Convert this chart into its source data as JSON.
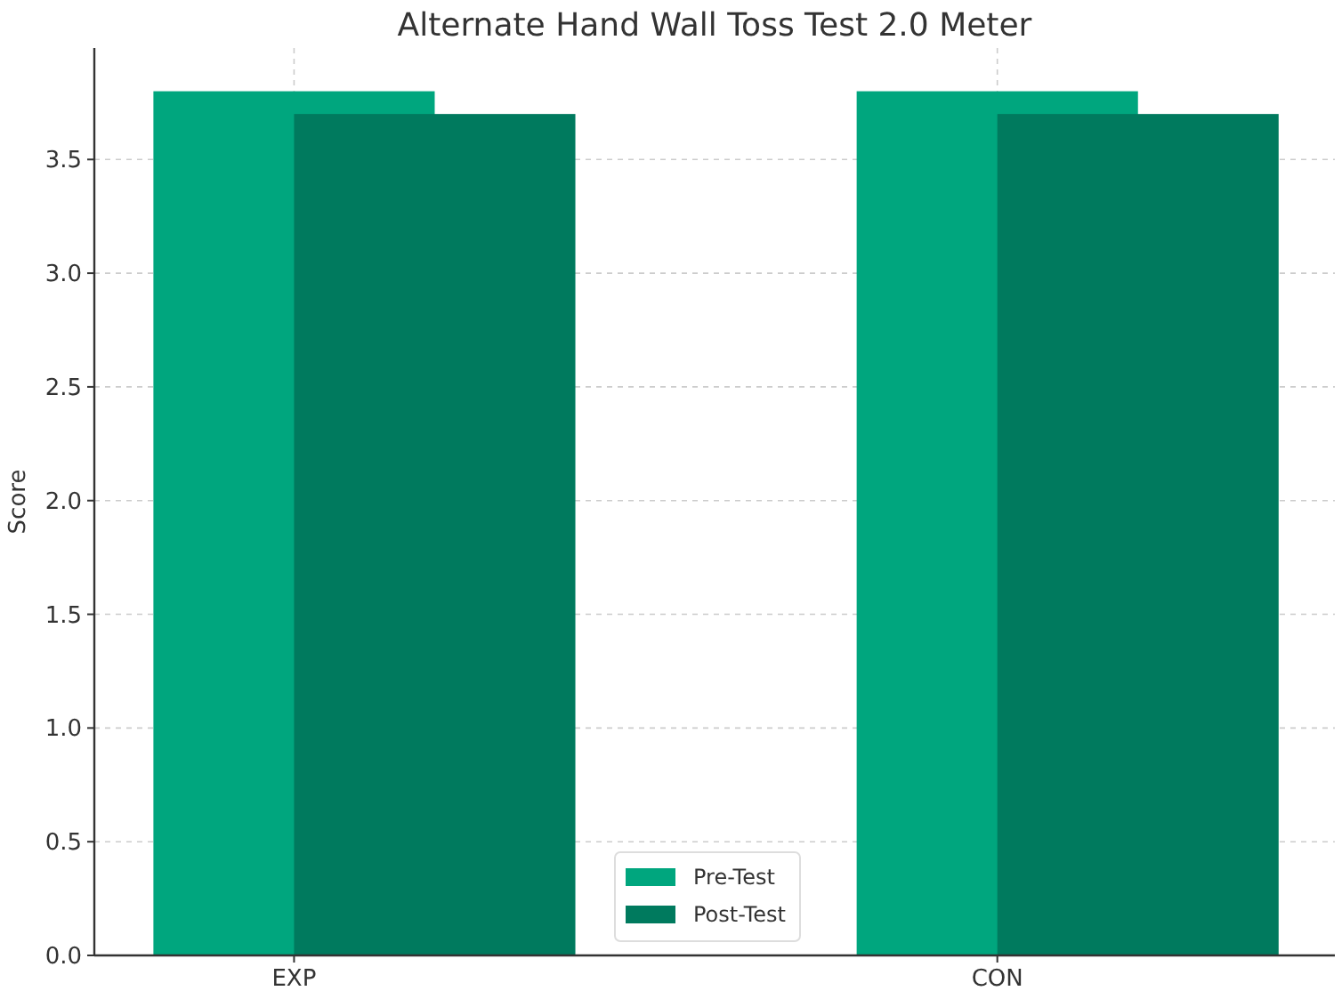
{
  "chart_data": {
    "type": "bar",
    "title": "Alternate Hand Wall Toss Test 2.0 Meter",
    "ylabel": "Score",
    "categories": [
      "EXP",
      "CON"
    ],
    "series": [
      {
        "name": "Pre-Test",
        "color": "#00a67e",
        "values": [
          3.8,
          3.8
        ]
      },
      {
        "name": "Post-Test",
        "color": "#007a5e",
        "values": [
          3.7,
          3.7
        ]
      }
    ],
    "ylim": [
      0,
      3.99
    ],
    "yticks": [
      {
        "value": 0,
        "label": "0.0"
      },
      {
        "value": 0.5,
        "label": "0.5"
      },
      {
        "value": 1,
        "label": "1.0"
      },
      {
        "value": 1.5,
        "label": "1.5"
      },
      {
        "value": 2,
        "label": "2.0"
      },
      {
        "value": 2.5,
        "label": "2.5"
      },
      {
        "value": 3,
        "label": "3.0"
      },
      {
        "value": 3.5,
        "label": "3.5"
      }
    ],
    "grid": true,
    "legend": "bottom"
  }
}
